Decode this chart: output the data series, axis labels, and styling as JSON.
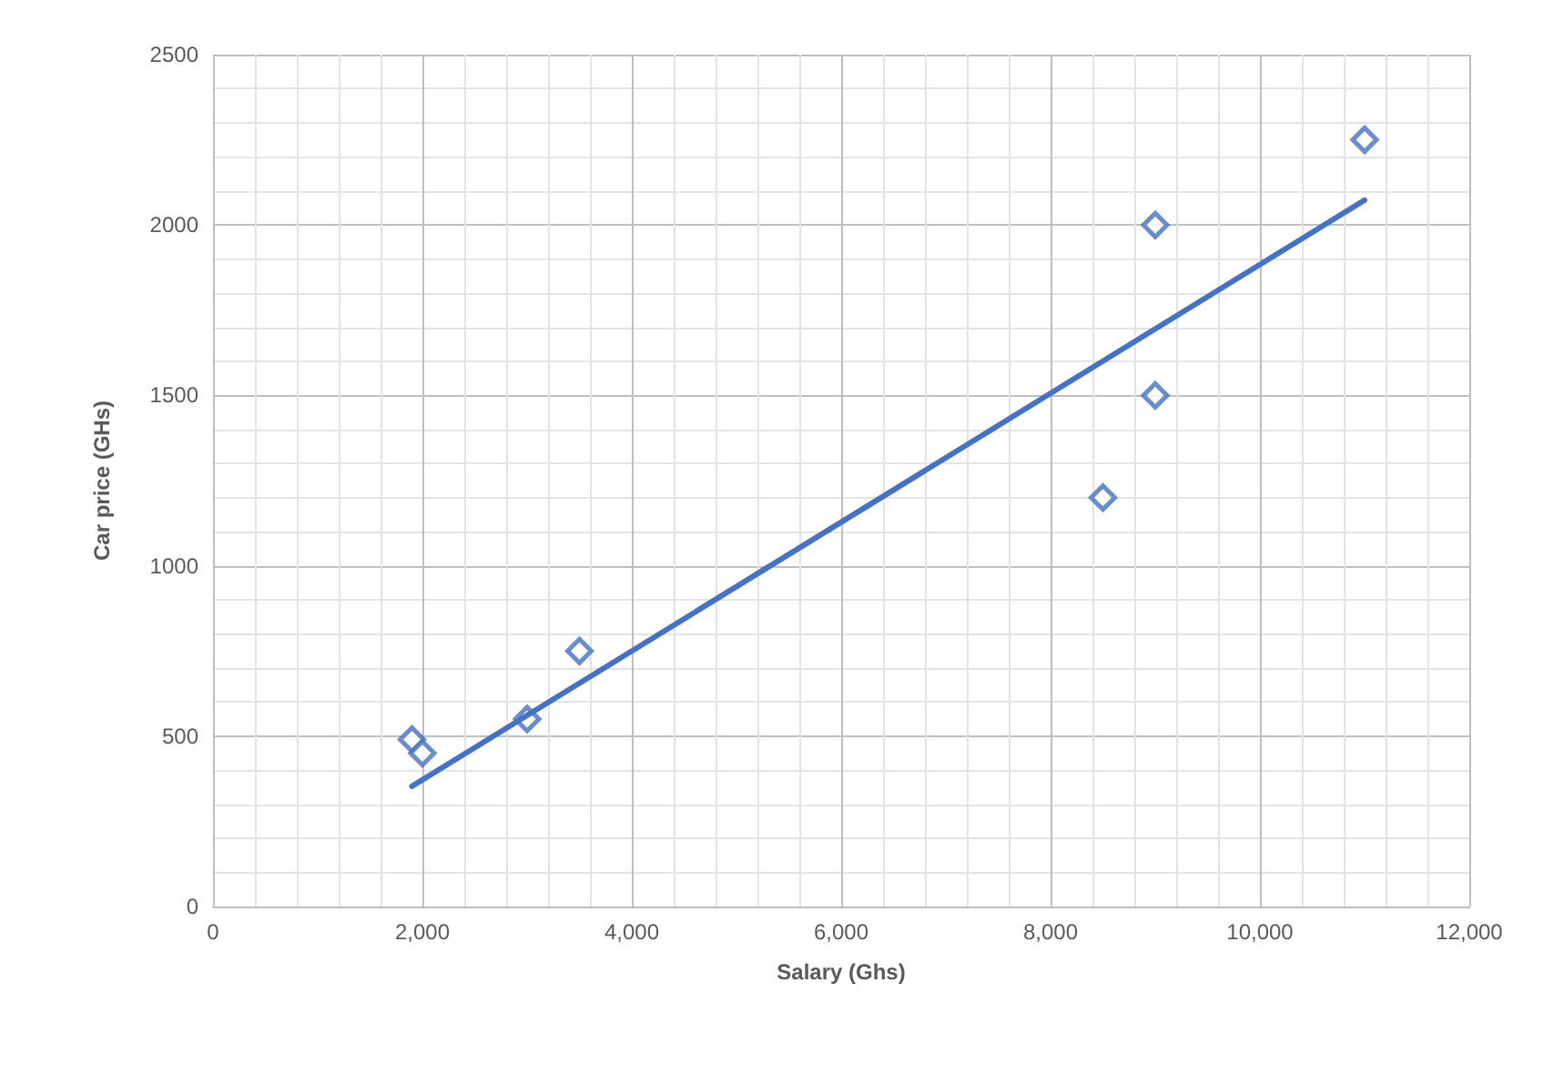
{
  "chart_data": {
    "type": "scatter",
    "xlabel": "Salary (Ghs)",
    "ylabel": "Car price (GHs)",
    "marker": "diamond",
    "grid": true,
    "xlim": [
      0,
      12000
    ],
    "ylim": [
      0,
      2500
    ],
    "xticks": [
      0,
      {
        "value": 2000,
        "label": "2,000"
      },
      {
        "value": 4000,
        "label": "4,000"
      },
      {
        "value": 6000,
        "label": "6,000"
      },
      {
        "value": 8000,
        "label": "8,000"
      },
      {
        "value": 10000,
        "label": "10,000"
      },
      {
        "value": 12000,
        "label": "12,000"
      }
    ],
    "yticks": [
      0,
      500,
      1000,
      1500,
      2000,
      2500
    ],
    "series": [
      {
        "type": "scatter",
        "color": "#4472c4",
        "x": [
          1900,
          2000,
          3000,
          3500,
          8500,
          9000,
          9000,
          11000
        ],
        "values": [
          490,
          450,
          550,
          750,
          1200,
          1500,
          2000,
          2250
        ]
      },
      {
        "type": "line",
        "color": "#4472c4",
        "marker": "none",
        "line_style": "solid",
        "x": [
          1900,
          11000
        ],
        "values": [
          353,
          2073
        ]
      }
    ]
  }
}
